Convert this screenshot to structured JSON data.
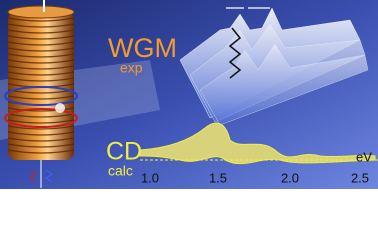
{
  "labels": {
    "wgm": "WGM",
    "exp": "exp",
    "cd": "CD",
    "calc": "calc"
  },
  "axis": {
    "unit": "eV",
    "ticks": [
      "1.0",
      "1.5",
      "2.0",
      "2.5"
    ]
  }
}
